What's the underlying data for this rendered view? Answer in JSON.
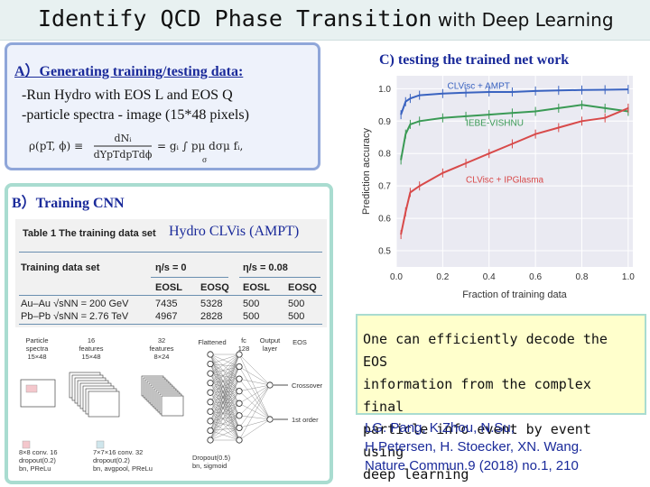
{
  "slide": {
    "title_main": "Identify QCD Phase Transition",
    "title_sub": " with Deep Learning"
  },
  "panel_a": {
    "header": "A）Generating training/testing data: ",
    "lines": [
      "-Run Hydro with EOS L and EOS Q",
      "-particle spectra - image (15*48 pixels)"
    ],
    "formula": {
      "lhs": "ρ(pT, ϕ) ≡",
      "frac_top": "dNᵢ",
      "frac_bottom": "dYpTdpTdϕ",
      "rhs": "= gᵢ ∫ pμ dσμ fᵢ,",
      "sigma": "σ"
    }
  },
  "panel_b": {
    "header": "B）Training CNN",
    "table": {
      "title": "Table 1 The training data set",
      "overlay": "Hydro CLVis (AMPT)",
      "header_row": [
        "Training data set",
        "η/s = 0",
        "η/s = 0.08"
      ],
      "sub_header": [
        "EOSL",
        "EOSQ",
        "EOSL",
        "EOSQ"
      ],
      "rows": [
        {
          "label": "Au–Au √sNN = 200 GeV",
          "values": [
            "7435",
            "5328",
            "500",
            "500"
          ]
        },
        {
          "label": "Pb–Pb √sNN = 2.76 TeV",
          "values": [
            "4967",
            "2828",
            "500",
            "500"
          ]
        }
      ]
    },
    "network": {
      "input": "Particle\nspectra\n15×48",
      "f16": "16\nfeatures\n15×48",
      "f32": "32\nfeatures\n8×24",
      "flattened": "Flattened",
      "fc": "fc\n128",
      "output": "Output\nlayer",
      "eos": "EOS",
      "crossover": "Crossover",
      "first_order": "1st order",
      "leg1": "8×8 conv. 16\ndropout(0.2)\nbn, PReLu",
      "leg2": "7×7×16 conv. 32\ndropout(0.2)\nbn, avgpool, PReLu",
      "leg3": "Dropout(0.5)\nbn, sigmoid"
    }
  },
  "panel_c": {
    "header": "C) testing the trained net work"
  },
  "chart_data": {
    "type": "line",
    "title": "",
    "xlabel": "Fraction of training data",
    "ylabel": "Prediction accuracy",
    "xlim": [
      0.0,
      1.02
    ],
    "ylim": [
      0.45,
      1.04
    ],
    "xticks": [
      "0.0",
      "0.2",
      "0.4",
      "0.6",
      "0.8",
      "1.0"
    ],
    "yticks": [
      "0.5",
      "0.6",
      "0.7",
      "0.8",
      "0.9",
      "1.0"
    ],
    "grid": true,
    "series": [
      {
        "name": "CLVisc + AMPT",
        "color": "#3a63c0",
        "x": [
          0.02,
          0.04,
          0.06,
          0.1,
          0.2,
          0.3,
          0.4,
          0.5,
          0.6,
          0.7,
          0.8,
          0.9,
          1.0
        ],
        "y": [
          0.92,
          0.96,
          0.97,
          0.98,
          0.985,
          0.988,
          0.99,
          0.99,
          0.993,
          0.995,
          0.996,
          0.997,
          0.998
        ]
      },
      {
        "name": "IEBE-VISHNU",
        "color": "#3a9a55",
        "x": [
          0.02,
          0.04,
          0.06,
          0.1,
          0.2,
          0.3,
          0.4,
          0.5,
          0.6,
          0.7,
          0.8,
          0.9,
          1.0
        ],
        "y": [
          0.78,
          0.86,
          0.89,
          0.9,
          0.91,
          0.915,
          0.92,
          0.925,
          0.93,
          0.94,
          0.95,
          0.94,
          0.93
        ]
      },
      {
        "name": "CLVisc + IPGlasma",
        "color": "#d84a4a",
        "x": [
          0.02,
          0.04,
          0.06,
          0.1,
          0.2,
          0.3,
          0.4,
          0.5,
          0.6,
          0.7,
          0.8,
          0.9,
          1.0
        ],
        "y": [
          0.55,
          0.62,
          0.68,
          0.7,
          0.74,
          0.77,
          0.8,
          0.83,
          0.86,
          0.88,
          0.9,
          0.91,
          0.94
        ]
      }
    ]
  },
  "summary": {
    "lines": [
      "One can efficiently decode the EOS",
      "information from the complex final",
      "particle info event by event  using",
      "deep learning"
    ]
  },
  "references": {
    "lines": [
      "LG. Pang, K.Zhou, N.Su,",
      "H.Petersen, H. Stoecker, XN. Wang.",
      "Nature Commun.9 (2018) no.1, 210"
    ]
  }
}
